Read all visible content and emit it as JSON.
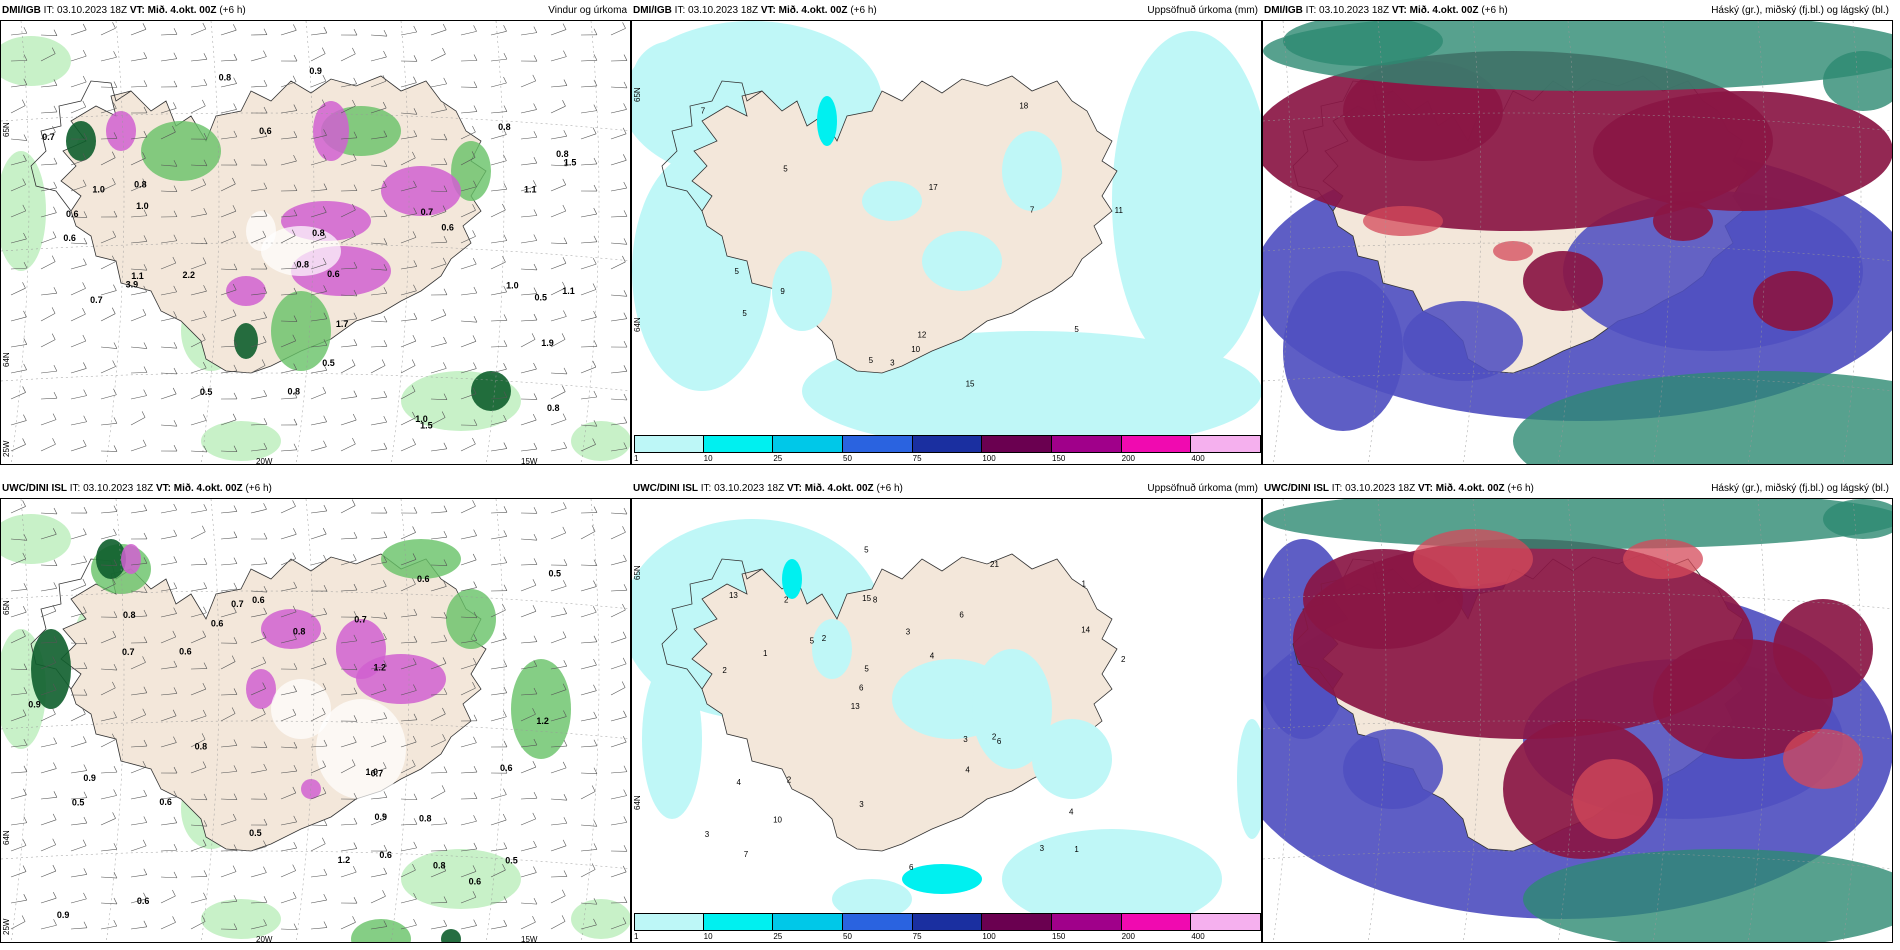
{
  "panels": [
    {
      "model": "DMI/IGB",
      "it": "IT: 03.10.2023 18Z",
      "vt_label": "VT:",
      "vt_value": "Mið. 4.okt. 00Z",
      "lead": "(+6 h)",
      "field": "Vindur og úrkoma",
      "precip_labels": [
        "1.9",
        "1.0",
        "0.8",
        "1.1",
        "0.6",
        "1.0",
        "1.5",
        "1.1",
        "0.6",
        "0.8",
        "0.9",
        "0.7",
        "0.6",
        "1.5",
        "0.5",
        "1.0",
        "0.7",
        "0.8",
        "0.8",
        "0.6",
        "0.8",
        "0.8",
        "0.5",
        "2.2",
        "0.8",
        "1.1",
        "0.6",
        "0.5",
        "1.7",
        "3.9",
        "1.0",
        "0.7",
        "0.8"
      ],
      "axis_labels": [
        "20W",
        "15W",
        "65N",
        "64N",
        "25W"
      ]
    },
    {
      "model": "DMI/IGB",
      "it": "IT: 03.10.2023 18Z",
      "vt_label": "VT:",
      "vt_value": "Mið. 4.okt. 00Z",
      "lead": "(+6 h)",
      "field": "Uppsöfnuð úrkoma (mm)",
      "numbers": [
        "5",
        "12",
        "17",
        "7",
        "11",
        "5",
        "10",
        "5",
        "7",
        "5",
        "9",
        "5",
        "3",
        "15",
        "18"
      ],
      "axis_labels": [
        "65N",
        "64N"
      ]
    },
    {
      "model": "DMI/IGB",
      "it": "IT: 03.10.2023 18Z",
      "vt_label": "VT:",
      "vt_value": "Mið. 4.okt. 00Z",
      "lead": "(+6 h)",
      "field": "Háský (gr.), miðský (fj.bl.) og lágský (bl.)"
    },
    {
      "model": "UWC/DINI ISL",
      "it": "IT: 03.10.2023 18Z",
      "vt_label": "VT:",
      "vt_value": "Mið. 4.okt. 00Z",
      "lead": "(+6 h)",
      "field": "",
      "precip_labels": [
        "0.5",
        "0.6",
        "0.6",
        "0.6",
        "0.9",
        "0.6",
        "0.6",
        "0.7",
        "0.5",
        "1.2",
        "0.6",
        "0.9",
        "0.8",
        "1.2",
        "0.8",
        "0.7",
        "0.6",
        "1.0",
        "0.6",
        "0.8",
        "0.8",
        "0.5",
        "0.9",
        "0.7",
        "0.8",
        "1.2",
        "0.6",
        "0.9",
        "0.5",
        "0.7"
      ],
      "axis_labels": [
        "20W",
        "15W",
        "65N",
        "64N",
        "25W"
      ]
    },
    {
      "model": "UWC/DINI ISL",
      "it": "IT: 03.10.2023 18Z",
      "vt_label": "VT:",
      "vt_value": "Mið. 4.okt. 00Z",
      "lead": "(+6 h)",
      "field": "Uppsöfnuð úrkoma (mm)",
      "numbers": [
        "1",
        "2",
        "1",
        "13",
        "6",
        "7",
        "15",
        "3",
        "4",
        "2",
        "3",
        "10",
        "8",
        "4",
        "6",
        "13",
        "5",
        "2",
        "3",
        "14",
        "6",
        "3",
        "5",
        "2",
        "21",
        "2",
        "3",
        "4",
        "2",
        "6",
        "5",
        "1",
        "4"
      ],
      "axis_labels": [
        "65N",
        "64N"
      ]
    },
    {
      "model": "UWC/DINI ISL",
      "it": "IT: 03.10.2023 18Z",
      "vt_label": "VT:",
      "vt_value": "Mið. 4.okt. 00Z",
      "lead": "(+6 h)",
      "field": "Háský (gr.), miðský (fj.bl.) og lágský (bl.)"
    }
  ],
  "colorbar": {
    "ticks": [
      "1",
      "10",
      "25",
      "50",
      "75",
      "100",
      "150",
      "200",
      "400"
    ],
    "colors": [
      "#bdf7f7",
      "#00f0f0",
      "#00c8e8",
      "#2a63e0",
      "#1a2fa0",
      "#6a0050",
      "#a0008a",
      "#f00ab0",
      "#f5b0ee"
    ]
  },
  "colors": {
    "land": "#f3e7da",
    "sea": "#ffffff",
    "precip_light": "#c2f0c2",
    "precip_mid": "#66c266",
    "precip_dark": "#0e5e2c",
    "precip_pink": "#d060d0",
    "accum_light": "#bff7f7",
    "cloud_high": "#2d8a72",
    "cloud_mid": "#8a1644",
    "cloud_low": "#5050c0"
  }
}
